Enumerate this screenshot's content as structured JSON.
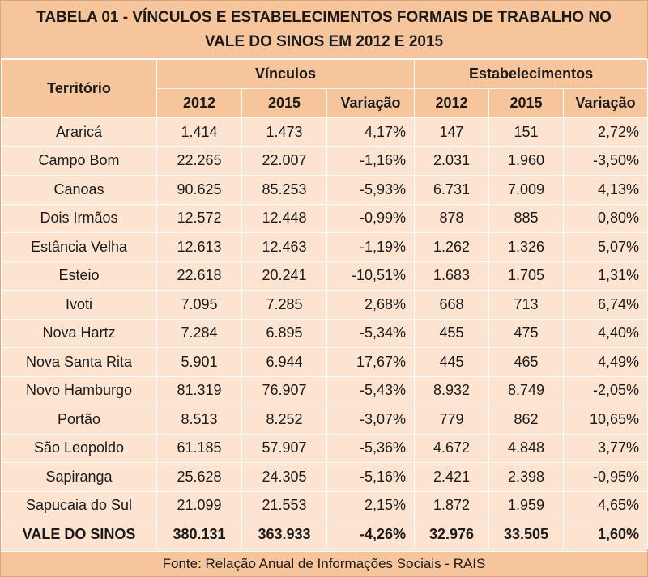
{
  "title_line1": "TABELA 01 - VÍNCULOS E ESTABELECIMENTOS FORMAIS DE TRABALHO NO",
  "title_line2": "VALE DO SINOS EM 2012 E 2015",
  "headers": {
    "territorio": "Território",
    "vinculos": "Vínculos",
    "estabelecimentos": "Estabelecimentos",
    "y2012": "2012",
    "y2015": "2015",
    "variacao": "Variação"
  },
  "rows": [
    {
      "name": "Araricá",
      "v2012": "1.414",
      "v2015": "1.473",
      "vvar": "4,17%",
      "e2012": "147",
      "e2015": "151",
      "evar": "2,72%"
    },
    {
      "name": "Campo Bom",
      "v2012": "22.265",
      "v2015": "22.007",
      "vvar": "-1,16%",
      "e2012": "2.031",
      "e2015": "1.960",
      "evar": "-3,50%"
    },
    {
      "name": "Canoas",
      "v2012": "90.625",
      "v2015": "85.253",
      "vvar": "-5,93%",
      "e2012": "6.731",
      "e2015": "7.009",
      "evar": "4,13%"
    },
    {
      "name": "Dois Irmãos",
      "v2012": "12.572",
      "v2015": "12.448",
      "vvar": "-0,99%",
      "e2012": "878",
      "e2015": "885",
      "evar": "0,80%"
    },
    {
      "name": "Estância Velha",
      "v2012": "12.613",
      "v2015": "12.463",
      "vvar": "-1,19%",
      "e2012": "1.262",
      "e2015": "1.326",
      "evar": "5,07%"
    },
    {
      "name": "Esteio",
      "v2012": "22.618",
      "v2015": "20.241",
      "vvar": "-10,51%",
      "e2012": "1.683",
      "e2015": "1.705",
      "evar": "1,31%"
    },
    {
      "name": "Ivoti",
      "v2012": "7.095",
      "v2015": "7.285",
      "vvar": "2,68%",
      "e2012": "668",
      "e2015": "713",
      "evar": "6,74%"
    },
    {
      "name": "Nova Hartz",
      "v2012": "7.284",
      "v2015": "6.895",
      "vvar": "-5,34%",
      "e2012": "455",
      "e2015": "475",
      "evar": "4,40%"
    },
    {
      "name": "Nova Santa Rita",
      "v2012": "5.901",
      "v2015": "6.944",
      "vvar": "17,67%",
      "e2012": "445",
      "e2015": "465",
      "evar": "4,49%"
    },
    {
      "name": "Novo Hamburgo",
      "v2012": "81.319",
      "v2015": "76.907",
      "vvar": "-5,43%",
      "e2012": "8.932",
      "e2015": "8.749",
      "evar": "-2,05%"
    },
    {
      "name": "Portão",
      "v2012": "8.513",
      "v2015": "8.252",
      "vvar": "-3,07%",
      "e2012": "779",
      "e2015": "862",
      "evar": "10,65%"
    },
    {
      "name": "São Leopoldo",
      "v2012": "61.185",
      "v2015": "57.907",
      "vvar": "-5,36%",
      "e2012": "4.672",
      "e2015": "4.848",
      "evar": "3,77%"
    },
    {
      "name": "Sapiranga",
      "v2012": "25.628",
      "v2015": "24.305",
      "vvar": "-5,16%",
      "e2012": "2.421",
      "e2015": "2.398",
      "evar": "-0,95%"
    },
    {
      "name": "Sapucaia do Sul",
      "v2012": "21.099",
      "v2015": "21.553",
      "vvar": "2,15%",
      "e2012": "1.872",
      "e2015": "1.959",
      "evar": "4,65%"
    }
  ],
  "total": {
    "name": "VALE DO SINOS",
    "v2012": "380.131",
    "v2015": "363.933",
    "vvar": "-4,26%",
    "e2012": "32.976",
    "e2015": "33.505",
    "evar": "1,60%"
  },
  "source": "Fonte: Relação Anual de Informações Sociais - RAIS",
  "colors": {
    "header_bg": "#f7c59b",
    "body_bg": "#fce4d0",
    "grid": "#ffffff"
  }
}
